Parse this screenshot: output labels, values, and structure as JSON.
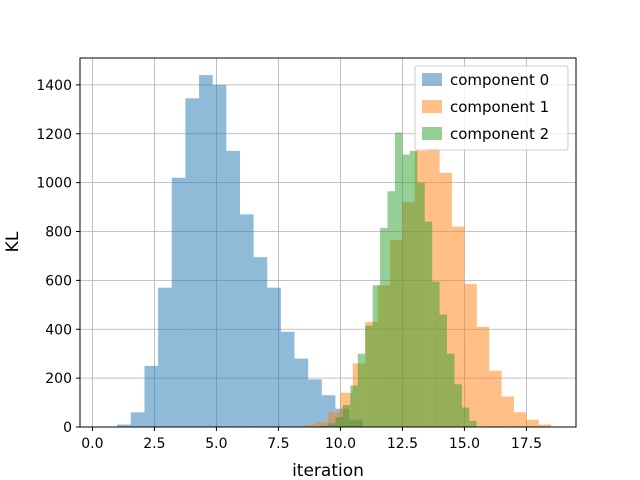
{
  "chart_data": {
    "type": "bar",
    "subtype": "histogram",
    "title": "",
    "xlabel": "iteration",
    "ylabel": "KL",
    "xlim": [
      -0.5,
      19.5
    ],
    "ylim": [
      0,
      1510
    ],
    "x_ticks": [
      "0.0",
      "2.5",
      "5.0",
      "7.5",
      "10.0",
      "12.5",
      "15.0",
      "17.5"
    ],
    "y_ticks": [
      "0",
      "200",
      "400",
      "600",
      "800",
      "1000",
      "1200",
      "1400"
    ],
    "grid": true,
    "legend_position": "top-right",
    "series": [
      {
        "name": "component 0",
        "color": "#1f77b4",
        "alpha": 0.5,
        "bin_edges": [
          1.0,
          1.55,
          2.1,
          2.65,
          3.2,
          3.75,
          4.3,
          4.85,
          5.4,
          5.95,
          6.5,
          7.05,
          7.6,
          8.15,
          8.7,
          9.25,
          9.8,
          10.35,
          10.9
        ],
        "counts": [
          10,
          60,
          250,
          570,
          1020,
          1345,
          1440,
          1400,
          1130,
          870,
          695,
          570,
          390,
          280,
          195,
          130,
          75,
          30
        ]
      },
      {
        "name": "component 1",
        "color": "#ff7f0e",
        "alpha": 0.5,
        "bin_edges": [
          8.5,
          9.0,
          9.5,
          10.0,
          10.5,
          11.0,
          11.5,
          12.0,
          12.5,
          13.0,
          13.5,
          14.0,
          14.5,
          15.0,
          15.5,
          16.0,
          16.5,
          17.0,
          17.5,
          18.0,
          18.5
        ],
        "counts": [
          8,
          20,
          60,
          140,
          260,
          430,
          580,
          765,
          920,
          1130,
          1140,
          1040,
          820,
          585,
          410,
          230,
          125,
          60,
          30,
          10
        ]
      },
      {
        "name": "component 2",
        "color": "#2ca02c",
        "alpha": 0.5,
        "bin_edges": [
          9.2,
          9.5,
          9.8,
          10.1,
          10.4,
          10.7,
          11.0,
          11.3,
          11.6,
          11.9,
          12.2,
          12.5,
          12.8,
          13.1,
          13.4,
          13.7,
          14.0,
          14.3,
          14.6,
          14.9,
          15.2,
          15.5
        ],
        "counts": [
          5,
          15,
          40,
          90,
          170,
          300,
          415,
          580,
          815,
          965,
          1205,
          1115,
          1130,
          1000,
          840,
          595,
          460,
          300,
          175,
          80,
          25
        ]
      }
    ]
  }
}
